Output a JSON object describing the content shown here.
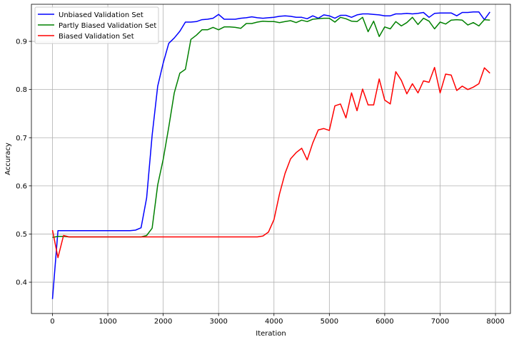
{
  "chart_data": {
    "type": "line",
    "title": "",
    "xlabel": "Iteration",
    "ylabel": "Accuracy",
    "xlim": [
      -380,
      8270
    ],
    "ylim": [
      0.335,
      0.977
    ],
    "xticks": [
      0,
      1000,
      2000,
      3000,
      4000,
      5000,
      6000,
      7000,
      8000
    ],
    "yticks": [
      0.4,
      0.5,
      0.6,
      0.7,
      0.8,
      0.9
    ],
    "xtick_labels": [
      "0",
      "1000",
      "2000",
      "3000",
      "4000",
      "5000",
      "6000",
      "7000",
      "8000"
    ],
    "ytick_labels": [
      "0.4",
      "0.5",
      "0.6",
      "0.7",
      "0.8",
      "0.9"
    ],
    "grid": true,
    "legend_position": "top-left",
    "x": [
      0,
      100,
      200,
      300,
      400,
      500,
      600,
      700,
      800,
      900,
      1000,
      1100,
      1200,
      1300,
      1400,
      1500,
      1600,
      1700,
      1800,
      1900,
      2000,
      2100,
      2200,
      2300,
      2400,
      2500,
      2600,
      2700,
      2800,
      2900,
      3000,
      3100,
      3200,
      3300,
      3400,
      3500,
      3600,
      3700,
      3800,
      3900,
      4000,
      4100,
      4200,
      4300,
      4400,
      4500,
      4600,
      4700,
      4800,
      4900,
      5000,
      5100,
      5200,
      5300,
      5400,
      5500,
      5600,
      5700,
      5800,
      5900,
      6000,
      6100,
      6200,
      6300,
      6400,
      6500,
      6600,
      6700,
      6800,
      6900,
      7000,
      7100,
      7200,
      7300,
      7400,
      7500,
      7600,
      7700,
      7800,
      7900
    ],
    "series": [
      {
        "name": "Unbiased Validation Set",
        "color": "#0000ff",
        "values": [
          0.365,
          0.507,
          0.507,
          0.507,
          0.507,
          0.507,
          0.507,
          0.507,
          0.507,
          0.507,
          0.507,
          0.507,
          0.507,
          0.507,
          0.507,
          0.508,
          0.513,
          0.575,
          0.705,
          0.807,
          0.855,
          0.896,
          0.907,
          0.921,
          0.94,
          0.94,
          0.941,
          0.945,
          0.946,
          0.948,
          0.956,
          0.946,
          0.946,
          0.946,
          0.948,
          0.949,
          0.951,
          0.949,
          0.948,
          0.949,
          0.95,
          0.952,
          0.953,
          0.952,
          0.95,
          0.95,
          0.947,
          0.953,
          0.948,
          0.955,
          0.953,
          0.948,
          0.954,
          0.954,
          0.95,
          0.955,
          0.957,
          0.957,
          0.956,
          0.955,
          0.953,
          0.953,
          0.957,
          0.957,
          0.958,
          0.957,
          0.958,
          0.96,
          0.95,
          0.958,
          0.959,
          0.959,
          0.959,
          0.953,
          0.96,
          0.96,
          0.961,
          0.961,
          0.945,
          0.961
        ]
      },
      {
        "name": "Partly Biased Validation Set",
        "color": "#008000",
        "values": [
          0.493,
          0.495,
          0.495,
          0.494,
          0.494,
          0.494,
          0.494,
          0.494,
          0.494,
          0.494,
          0.494,
          0.494,
          0.494,
          0.494,
          0.494,
          0.494,
          0.494,
          0.497,
          0.512,
          0.602,
          0.655,
          0.722,
          0.793,
          0.834,
          0.842,
          0.904,
          0.913,
          0.924,
          0.924,
          0.929,
          0.924,
          0.93,
          0.93,
          0.929,
          0.927,
          0.937,
          0.937,
          0.94,
          0.942,
          0.941,
          0.941,
          0.939,
          0.941,
          0.943,
          0.939,
          0.944,
          0.941,
          0.946,
          0.947,
          0.948,
          0.948,
          0.94,
          0.95,
          0.947,
          0.942,
          0.941,
          0.95,
          0.92,
          0.942,
          0.91,
          0.93,
          0.926,
          0.941,
          0.932,
          0.939,
          0.95,
          0.935,
          0.948,
          0.942,
          0.926,
          0.94,
          0.936,
          0.944,
          0.945,
          0.944,
          0.934,
          0.939,
          0.932,
          0.945,
          0.944
        ]
      },
      {
        "name": "Biased Validation Set",
        "color": "#ff0000",
        "values": [
          0.508,
          0.451,
          0.497,
          0.494,
          0.494,
          0.494,
          0.494,
          0.494,
          0.494,
          0.494,
          0.494,
          0.494,
          0.494,
          0.494,
          0.494,
          0.494,
          0.494,
          0.494,
          0.494,
          0.494,
          0.494,
          0.494,
          0.494,
          0.494,
          0.494,
          0.494,
          0.494,
          0.494,
          0.494,
          0.494,
          0.494,
          0.494,
          0.494,
          0.494,
          0.494,
          0.494,
          0.494,
          0.494,
          0.496,
          0.504,
          0.53,
          0.583,
          0.626,
          0.656,
          0.669,
          0.678,
          0.654,
          0.689,
          0.716,
          0.719,
          0.715,
          0.766,
          0.77,
          0.741,
          0.793,
          0.756,
          0.801,
          0.768,
          0.768,
          0.822,
          0.778,
          0.77,
          0.837,
          0.819,
          0.791,
          0.812,
          0.793,
          0.818,
          0.815,
          0.846,
          0.793,
          0.832,
          0.83,
          0.798,
          0.807,
          0.8,
          0.805,
          0.812,
          0.845,
          0.834
        ]
      }
    ]
  }
}
